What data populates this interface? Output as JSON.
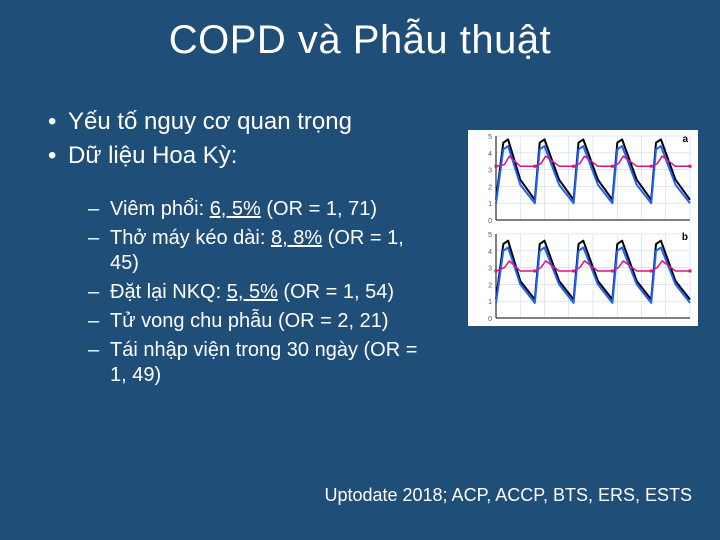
{
  "slide": {
    "title": "COPD và Phẫu thuật",
    "bullets": [
      {
        "text": "Yếu tố nguy cơ quan trọng"
      },
      {
        "text": "Dữ liệu Hoa Kỳ:"
      }
    ],
    "subbullets": [
      {
        "prefix": "Viêm phổi: ",
        "underline": "6, 5%",
        "suffix": " (OR = 1, 71)"
      },
      {
        "prefix": "Thở máy kéo dài: ",
        "underline": "8, 8%",
        "suffix": " (OR = 1, 45)"
      },
      {
        "prefix": "Đặt lại NKQ: ",
        "underline": "5, 5%",
        "suffix": " (OR = 1, 54)"
      },
      {
        "prefix": "Tử vong chu phẫu (OR = 2, 21)",
        "underline": "",
        "suffix": ""
      },
      {
        "prefix": "Tái nhập viện trong 30 ngày (OR = 1, 49)",
        "underline": "",
        "suffix": ""
      }
    ],
    "citation": "Uptodate 2018; ACP, ACCP, BTS, ERS, ESTS"
  },
  "chart": {
    "type": "multi-panel-line",
    "background_color": "#ffffff",
    "grid_color": "#c8d8f0",
    "axis_color": "#000000",
    "panels": [
      {
        "label": "a",
        "label_color": "#000000",
        "xlim": [
          0,
          8
        ],
        "ylim": [
          0,
          5
        ],
        "ytick_step": 1,
        "series": [
          {
            "color": "#000000",
            "width": 2,
            "x": [
              0,
              0.3,
              0.5,
              1,
              1.6,
              1.8,
              2,
              2.6,
              3.2,
              3.4,
              3.6,
              4.2,
              4.8,
              5,
              5.2,
              5.8,
              6.4,
              6.6,
              6.8,
              7.4,
              8
            ],
            "y": [
              1.2,
              4.6,
              4.8,
              2.4,
              1.2,
              4.6,
              4.8,
              2.4,
              1.2,
              4.6,
              4.8,
              2.4,
              1.2,
              4.6,
              4.8,
              2.4,
              1.2,
              4.6,
              4.8,
              2.4,
              1.2
            ]
          },
          {
            "color": "#1e60ff",
            "width": 2,
            "x": [
              0,
              0.3,
              0.5,
              1,
              1.6,
              1.8,
              2,
              2.6,
              3.2,
              3.4,
              3.6,
              4.2,
              4.8,
              5,
              5.2,
              5.8,
              6.4,
              6.6,
              6.8,
              7.4,
              8
            ],
            "y": [
              1,
              4.2,
              4.4,
              2.1,
              1,
              4.2,
              4.4,
              2.1,
              1,
              4.2,
              4.4,
              2.1,
              1,
              4.2,
              4.4,
              2.1,
              1,
              4.2,
              4.4,
              2.1,
              1
            ]
          },
          {
            "color": "#e01080",
            "width": 1.5,
            "x": [
              0,
              0.35,
              0.55,
              1,
              1.6,
              1.85,
              2.05,
              2.6,
              3.2,
              3.45,
              3.65,
              4.2,
              4.8,
              5.05,
              5.25,
              5.8,
              6.4,
              6.65,
              6.85,
              7.4,
              8
            ],
            "y": [
              3.2,
              3.3,
              3.8,
              3.2,
              3.2,
              3.35,
              3.8,
              3.2,
              3.2,
              3.35,
              3.8,
              3.2,
              3.2,
              3.35,
              3.8,
              3.2,
              3.2,
              3.35,
              3.8,
              3.2,
              3.2
            ]
          }
        ]
      },
      {
        "label": "b",
        "label_color": "#000000",
        "xlim": [
          0,
          8
        ],
        "ylim": [
          0,
          5
        ],
        "ytick_step": 1,
        "series": [
          {
            "color": "#000000",
            "width": 2,
            "x": [
              0,
              0.3,
              0.5,
              1,
              1.6,
              1.8,
              2,
              2.6,
              3.2,
              3.4,
              3.6,
              4.2,
              4.8,
              5,
              5.2,
              5.8,
              6.4,
              6.6,
              6.8,
              7.4,
              8
            ],
            "y": [
              1.1,
              4.4,
              4.6,
              2.2,
              1.1,
              4.4,
              4.6,
              2.2,
              1.1,
              4.4,
              4.6,
              2.2,
              1.1,
              4.4,
              4.6,
              2.2,
              1.1,
              4.4,
              4.6,
              2.2,
              1.1
            ]
          },
          {
            "color": "#1e60ff",
            "width": 2,
            "x": [
              0,
              0.3,
              0.5,
              1,
              1.6,
              1.8,
              2,
              2.6,
              3.2,
              3.4,
              3.6,
              4.2,
              4.8,
              5,
              5.2,
              5.8,
              6.4,
              6.6,
              6.8,
              7.4,
              8
            ],
            "y": [
              0.9,
              4.0,
              4.2,
              2.0,
              0.9,
              4.0,
              4.2,
              2.0,
              0.9,
              4.0,
              4.2,
              2.0,
              0.9,
              4.0,
              4.2,
              2.0,
              0.9,
              4.0,
              4.2,
              2.0,
              0.9
            ]
          },
          {
            "color": "#e01080",
            "width": 1.5,
            "x": [
              0,
              0.35,
              0.55,
              1,
              1.6,
              1.85,
              2.05,
              2.6,
              3.2,
              3.45,
              3.65,
              4.2,
              4.8,
              5.05,
              5.25,
              5.8,
              6.4,
              6.65,
              6.85,
              7.4,
              8
            ],
            "y": [
              2.8,
              3.0,
              3.4,
              2.8,
              2.8,
              3.0,
              3.4,
              2.8,
              2.8,
              3.0,
              3.4,
              2.8,
              2.8,
              3.0,
              3.4,
              2.8,
              2.8,
              3.0,
              3.4,
              2.8,
              2.8
            ]
          }
        ]
      }
    ],
    "panel_label_fontsize": 10,
    "markers": {
      "color": "#e01080",
      "size": 3
    }
  }
}
